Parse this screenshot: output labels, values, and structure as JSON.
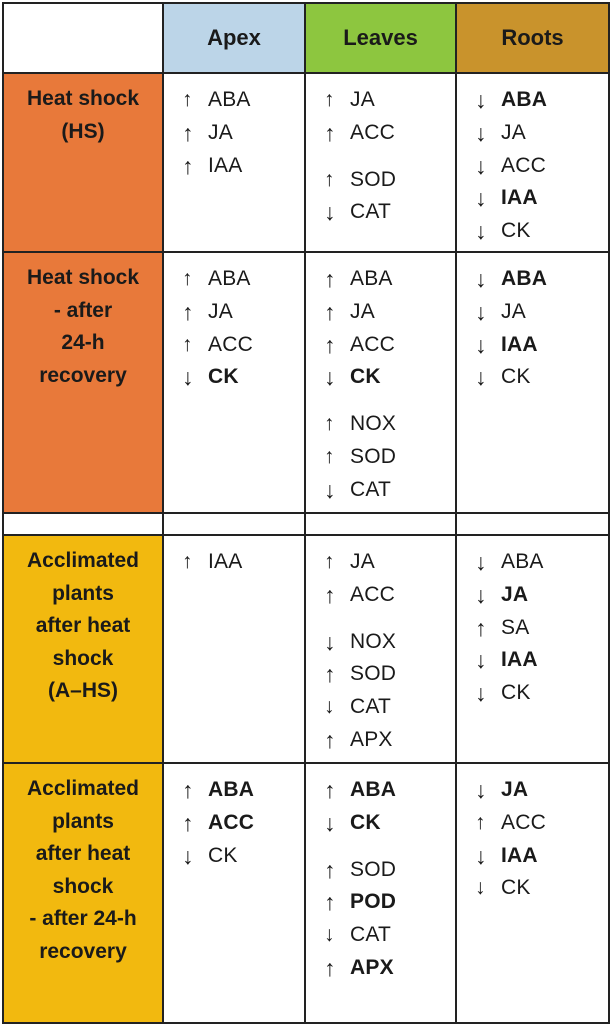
{
  "colors": {
    "apex_header": "#bcd5e8",
    "leaves_header": "#8dc63f",
    "roots_header": "#c9932c",
    "hs_rows": "#e8793a",
    "ahs_rows": "#f2b90f",
    "border": "#222222"
  },
  "headers": {
    "apex": "Apex",
    "leaves": "Leaves",
    "roots": "Roots"
  },
  "rows": [
    {
      "label": "Heat shock\n(HS)",
      "apex": [
        {
          "dir": "up",
          "arrow": "↑",
          "name": "ABA",
          "bold": false
        },
        {
          "dir": "up",
          "arrow": "↑",
          "name": "JA",
          "bold": false,
          "bold_arrow": true
        },
        {
          "dir": "up",
          "arrow": "↑",
          "name": "IAA",
          "bold": false,
          "bold_arrow": true
        }
      ],
      "leaves": [
        {
          "dir": "up",
          "arrow": "↑",
          "name": "JA",
          "bold": false
        },
        {
          "dir": "up",
          "arrow": "↑",
          "name": "ACC",
          "bold": false,
          "bold_arrow": true
        },
        {
          "dir": "up",
          "arrow": "↑",
          "name": "SOD",
          "bold": false,
          "gap": true
        },
        {
          "dir": "down",
          "arrow": "↓",
          "name": "CAT",
          "bold": false,
          "bold_arrow": true
        }
      ],
      "roots": [
        {
          "dir": "down",
          "arrow": "↓",
          "name": "ABA",
          "bold": true
        },
        {
          "dir": "down",
          "arrow": "↓",
          "name": "JA",
          "bold": false,
          "bold_arrow": true
        },
        {
          "dir": "down",
          "arrow": "↓",
          "name": "ACC",
          "bold": false,
          "bold_arrow": true
        },
        {
          "dir": "down",
          "arrow": "↓",
          "name": "IAA",
          "bold": true
        },
        {
          "dir": "down",
          "arrow": "↓",
          "name": "CK",
          "bold": false,
          "bold_arrow": true
        }
      ]
    },
    {
      "label": "Heat shock\n- after\n24-h\nrecovery",
      "apex": [
        {
          "dir": "up",
          "arrow": "↑",
          "name": "ABA",
          "bold": false
        },
        {
          "dir": "up",
          "arrow": "↑",
          "name": "JA",
          "bold": false,
          "bold_arrow": true
        },
        {
          "dir": "up",
          "arrow": "↑",
          "name": "ACC",
          "bold": false
        },
        {
          "dir": "down",
          "arrow": "↓",
          "name": "CK",
          "bold": true
        }
      ],
      "leaves": [
        {
          "dir": "up",
          "arrow": "↑",
          "name": "ABA",
          "bold": false,
          "bold_arrow": true
        },
        {
          "dir": "up",
          "arrow": "↑",
          "name": "JA",
          "bold": false,
          "bold_arrow": true
        },
        {
          "dir": "up",
          "arrow": "↑",
          "name": "ACC",
          "bold": false,
          "bold_arrow": true
        },
        {
          "dir": "down",
          "arrow": "↓",
          "name": "CK",
          "bold": true
        },
        {
          "dir": "up",
          "arrow": "↑",
          "name": "NOX",
          "bold": false,
          "gap": true
        },
        {
          "dir": "up",
          "arrow": "↑",
          "name": "SOD",
          "bold": false
        },
        {
          "dir": "down",
          "arrow": "↓",
          "name": "CAT",
          "bold": false,
          "bold_arrow": true
        }
      ],
      "roots": [
        {
          "dir": "down",
          "arrow": "↓",
          "name": "ABA",
          "bold": true
        },
        {
          "dir": "down",
          "arrow": "↓",
          "name": "JA",
          "bold": false,
          "bold_arrow": true
        },
        {
          "dir": "down",
          "arrow": "↓",
          "name": "IAA",
          "bold": true
        },
        {
          "dir": "down",
          "arrow": "↓",
          "name": "CK",
          "bold": false,
          "bold_arrow": true
        }
      ]
    },
    {
      "label": "Acclimated\nplants\nafter heat\nshock\n(A–HS)",
      "apex": [
        {
          "dir": "up",
          "arrow": "↑",
          "name": "IAA",
          "bold": false
        }
      ],
      "leaves": [
        {
          "dir": "up",
          "arrow": "↑",
          "name": "JA",
          "bold": false
        },
        {
          "dir": "up",
          "arrow": "↑",
          "name": "ACC",
          "bold": false,
          "bold_arrow": true
        },
        {
          "dir": "down",
          "arrow": "↓",
          "name": "NOX",
          "bold": false,
          "bold_arrow": true,
          "gap": true
        },
        {
          "dir": "up",
          "arrow": "↑",
          "name": "SOD",
          "bold": false,
          "bold_arrow": true
        },
        {
          "dir": "down",
          "arrow": "↓",
          "name": "CAT",
          "bold": false
        },
        {
          "dir": "up",
          "arrow": "↑",
          "name": "APX",
          "bold": false,
          "bold_arrow": true
        }
      ],
      "roots": [
        {
          "dir": "down",
          "arrow": "↓",
          "name": "ABA",
          "bold": false,
          "bold_arrow": true
        },
        {
          "dir": "down",
          "arrow": "↓",
          "name": "JA",
          "bold": true
        },
        {
          "dir": "up",
          "arrow": "↑",
          "name": "SA",
          "bold": false,
          "bold_arrow": true
        },
        {
          "dir": "down",
          "arrow": "↓",
          "name": "IAA",
          "bold": true
        },
        {
          "dir": "down",
          "arrow": "↓",
          "name": "CK",
          "bold": false,
          "bold_arrow": true
        }
      ]
    },
    {
      "label": "Acclimated\nplants\nafter heat\nshock\n- after 24-h\nrecovery",
      "apex": [
        {
          "dir": "up",
          "arrow": "↑",
          "name": "ABA",
          "bold": true
        },
        {
          "dir": "up",
          "arrow": "↑",
          "name": "ACC",
          "bold": true
        },
        {
          "dir": "down",
          "arrow": "↓",
          "name": "CK",
          "bold": false,
          "bold_arrow": true
        }
      ],
      "leaves": [
        {
          "dir": "up",
          "arrow": "↑",
          "name": "ABA",
          "bold": true
        },
        {
          "dir": "down",
          "arrow": "↓",
          "name": "CK",
          "bold": true
        },
        {
          "dir": "up",
          "arrow": "↑",
          "name": "SOD",
          "bold": false,
          "bold_arrow": true,
          "gap": true
        },
        {
          "dir": "up",
          "arrow": "↑",
          "name": "POD",
          "bold": true
        },
        {
          "dir": "down",
          "arrow": "↓",
          "name": "CAT",
          "bold": false
        },
        {
          "dir": "up",
          "arrow": "↑",
          "name": "APX",
          "bold": true
        }
      ],
      "roots": [
        {
          "dir": "down",
          "arrow": "↓",
          "name": "JA",
          "bold": true
        },
        {
          "dir": "up",
          "arrow": "↑",
          "name": "ACC",
          "bold": false
        },
        {
          "dir": "down",
          "arrow": "↓",
          "name": "IAA",
          "bold": true
        },
        {
          "dir": "down",
          "arrow": "↓",
          "name": "CK",
          "bold": false
        }
      ]
    }
  ]
}
